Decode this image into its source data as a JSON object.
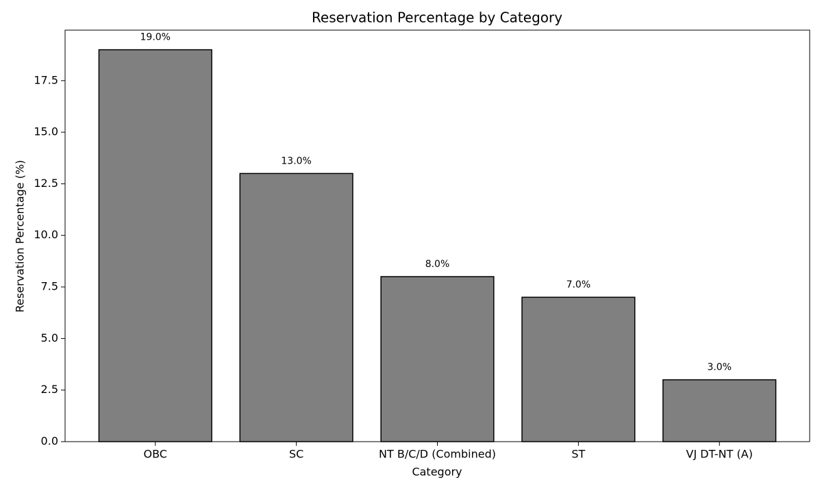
{
  "chart_data": {
    "type": "bar",
    "title": "Reservation Percentage by Category",
    "x_label": "Category",
    "y_label": "Reservation Percentage (%)",
    "categories": [
      "OBC",
      "SC",
      "NT B/C/D (Combined)",
      "ST",
      "VJ DT-NT (A)"
    ],
    "values": [
      19,
      13,
      8,
      7,
      3
    ],
    "value_labels": [
      "19.0%",
      "13.0%",
      "8.0%",
      "7.0%",
      "3.0%"
    ],
    "color": "#808080",
    "edge_color": "#000000",
    "ylim": [
      0,
      19.95
    ],
    "yticks": [
      {
        "value": 0,
        "label": "0.0"
      },
      {
        "value": 2.5,
        "label": "2.5"
      },
      {
        "value": 5,
        "label": "5.0"
      },
      {
        "value": 7.5,
        "label": "7.5"
      },
      {
        "value": 10,
        "label": "10.0"
      },
      {
        "value": 12.5,
        "label": "12.5"
      },
      {
        "value": 15,
        "label": "15.0"
      },
      {
        "value": 17.5,
        "label": "17.5"
      }
    ],
    "grid": false
  }
}
